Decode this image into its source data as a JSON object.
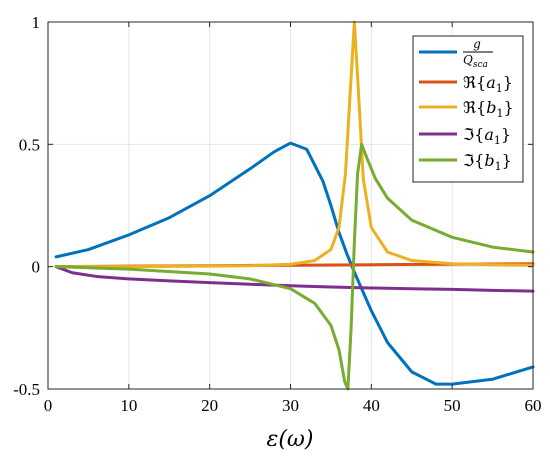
{
  "chart_data": {
    "type": "line",
    "title": "",
    "xlabel": "ε(ω)",
    "ylabel": "",
    "xlim": [
      0,
      60
    ],
    "ylim": [
      -0.5,
      1
    ],
    "xticks": [
      0,
      10,
      20,
      30,
      40,
      50,
      60
    ],
    "yticks": [
      -0.5,
      0,
      0.5,
      1
    ],
    "xtick_labels": [
      "0",
      "10",
      "20",
      "30",
      "40",
      "50",
      "60"
    ],
    "ytick_labels": [
      "-0.5",
      "0",
      "0.5",
      "1"
    ],
    "grid": true,
    "legend_position": "top-right",
    "series": [
      {
        "name": "g / Q_sca",
        "legend": {
          "kind": "fraction",
          "numerator": "g",
          "denominator": "Q",
          "denominator_sub": "sca"
        },
        "color": "#0072BD",
        "x": [
          1,
          5,
          10,
          15,
          20,
          25,
          28,
          30,
          32,
          34,
          35,
          36,
          37,
          38,
          40,
          42,
          45,
          48,
          50,
          55,
          60
        ],
        "y": [
          0.04,
          0.07,
          0.13,
          0.2,
          0.29,
          0.4,
          0.47,
          0.505,
          0.48,
          0.35,
          0.25,
          0.14,
          0.05,
          -0.03,
          -0.18,
          -0.31,
          -0.43,
          -0.48,
          -0.48,
          -0.46,
          -0.41
        ]
      },
      {
        "name": "ℜ{a1}",
        "legend": {
          "kind": "complex",
          "op": "ℜ",
          "base": "a",
          "sub": "1"
        },
        "color": "#D95319",
        "x": [
          1,
          10,
          20,
          30,
          40,
          50,
          60
        ],
        "y": [
          0.0,
          0.002,
          0.004,
          0.006,
          0.008,
          0.01,
          0.012
        ]
      },
      {
        "name": "ℜ{b1}",
        "legend": {
          "kind": "complex",
          "op": "ℜ",
          "base": "b",
          "sub": "1"
        },
        "color": "#EDB120",
        "x": [
          1,
          10,
          20,
          25,
          30,
          33,
          35,
          36,
          36.8,
          37.4,
          37.9,
          38.4,
          39,
          40,
          42,
          45,
          50,
          55,
          60
        ],
        "y": [
          0.0,
          0.0,
          0.002,
          0.004,
          0.01,
          0.025,
          0.07,
          0.16,
          0.38,
          0.72,
          1.0,
          0.72,
          0.36,
          0.16,
          0.06,
          0.025,
          0.012,
          0.008,
          0.006
        ]
      },
      {
        "name": "ℑ{a1}",
        "legend": {
          "kind": "complex",
          "op": "ℑ",
          "base": "a",
          "sub": "1"
        },
        "color": "#7E2F8E",
        "x": [
          1,
          3,
          6,
          10,
          15,
          20,
          25,
          30,
          35,
          40,
          45,
          50,
          55,
          60
        ],
        "y": [
          0.0,
          -0.025,
          -0.04,
          -0.05,
          -0.058,
          -0.065,
          -0.072,
          -0.078,
          -0.083,
          -0.087,
          -0.09,
          -0.093,
          -0.097,
          -0.1
        ]
      },
      {
        "name": "ℑ{b1}",
        "legend": {
          "kind": "complex",
          "op": "ℑ",
          "base": "b",
          "sub": "1"
        },
        "color": "#77AC30",
        "x": [
          1,
          10,
          20,
          25,
          30,
          33,
          35,
          36,
          36.7,
          37.1,
          37.5,
          37.9,
          38.3,
          38.8,
          39.5,
          40.5,
          42,
          45,
          50,
          55,
          60
        ],
        "y": [
          0.0,
          -0.01,
          -0.03,
          -0.05,
          -0.09,
          -0.15,
          -0.24,
          -0.34,
          -0.47,
          -0.5,
          -0.25,
          0.1,
          0.38,
          0.5,
          0.44,
          0.36,
          0.28,
          0.19,
          0.12,
          0.08,
          0.06
        ]
      }
    ]
  }
}
